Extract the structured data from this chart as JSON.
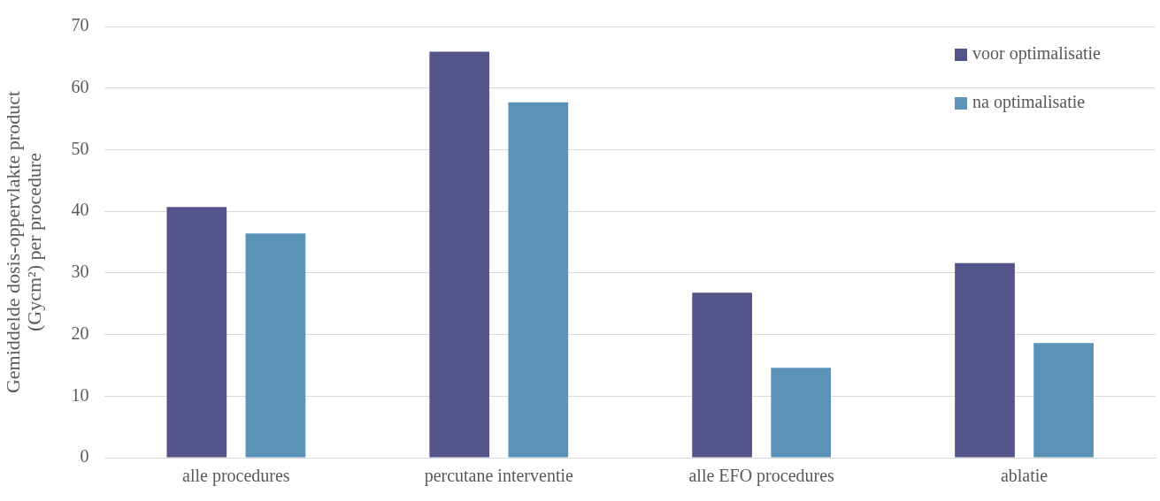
{
  "chart_data": {
    "type": "bar",
    "ylabel": "Gemiddelde dosis-oppervlakte product\n(Gycm²) per procedure",
    "categories": [
      "alle procedures",
      "percutane interventie",
      "alle EFO procedures",
      "ablatie"
    ],
    "series": [
      {
        "name": "voor optimalisatie",
        "color": "#53548a",
        "values": [
          40.7,
          65.9,
          26.8,
          31.6
        ]
      },
      {
        "name": "na optimalisatie",
        "color": "#5b93b8",
        "values": [
          36.4,
          57.7,
          14.6,
          18.6
        ]
      }
    ],
    "ylim": [
      0,
      70
    ],
    "yticks": [
      0,
      10,
      20,
      30,
      40,
      50,
      60,
      70
    ],
    "grid": "y",
    "legend": "top right"
  }
}
